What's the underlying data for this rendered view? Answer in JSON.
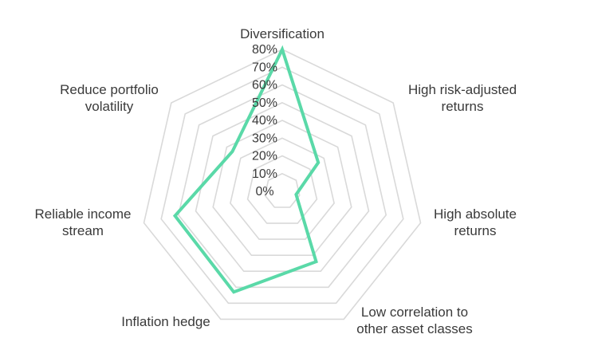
{
  "chart_data": {
    "type": "radar",
    "axes": [
      [
        "Diversification"
      ],
      [
        "High risk-adjusted",
        "returns"
      ],
      [
        "High absolute",
        "returns"
      ],
      [
        "Low correlation to",
        "other asset classes"
      ],
      [
        "Inflation hedge"
      ],
      [
        "Reliable income",
        "stream"
      ],
      [
        "Reduce portfolio",
        "volatility"
      ]
    ],
    "tick_labels": [
      "0%",
      "10%",
      "20%",
      "30%",
      "40%",
      "50%",
      "60%",
      "70%",
      "80%"
    ],
    "range": [
      0,
      80
    ],
    "ring_step": 10,
    "grid": true,
    "legend": "none",
    "series": [
      {
        "values": [
          80,
          26,
          8,
          44,
          63,
          62,
          36
        ],
        "color": "#5ad9a8"
      }
    ]
  }
}
